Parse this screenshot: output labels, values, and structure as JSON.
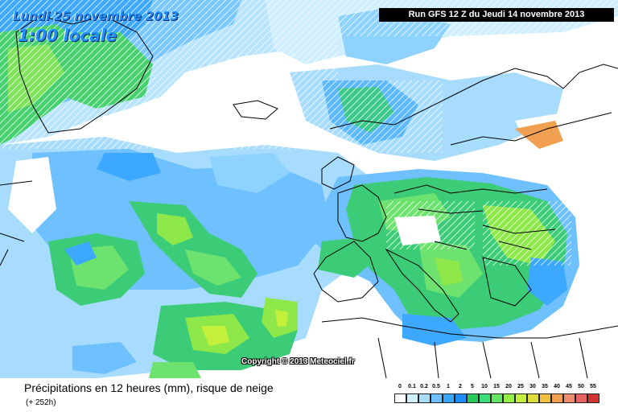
{
  "header": {
    "date": "Lundi 25 novembre 2013",
    "time": "1:00 locale",
    "run": "Run GFS 12 Z du Jeudi 14 novembre 2013"
  },
  "copyright": "Copyright © 2013 Meteociel.fr",
  "footer": {
    "title": "Précipitations en 12 heures (mm), risque de neige",
    "subtitle": "(+ 252h)"
  },
  "legend": {
    "labels": [
      "0",
      "0.1",
      "0.2",
      "0.5",
      "1",
      "2",
      "5",
      "10",
      "15",
      "20",
      "25",
      "30",
      "35",
      "40",
      "45",
      "50",
      "55"
    ],
    "colors": [
      "#ffffff",
      "#d2f0ff",
      "#a8dcff",
      "#6ec0ff",
      "#38a6ff",
      "#1e8bff",
      "#28c85a",
      "#3cdc78",
      "#64e664",
      "#96ee46",
      "#c4f03c",
      "#dcdc3c",
      "#f0c040",
      "#f0a050",
      "#f08c6e",
      "#e86464",
      "#d23232"
    ]
  }
}
